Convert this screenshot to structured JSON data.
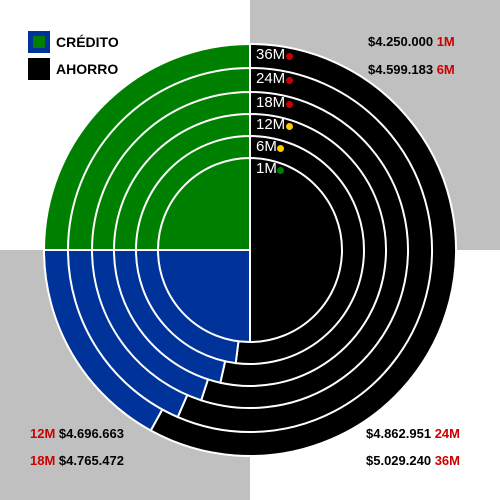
{
  "colors": {
    "credito": "#008000",
    "credito_border": "#003399",
    "ahorro": "#000000",
    "credito_blue": "#003399",
    "bg_gray": "#c0c0c0",
    "term_red": "#cc0000",
    "dot_red": "#cc0000",
    "dot_yellow": "#ffcc00",
    "dot_green": "#008000"
  },
  "legend": {
    "credito_label": "CRÉDITO",
    "ahorro_label": "AHORRO"
  },
  "amounts": {
    "top_right_1": {
      "value": "$4.250.000",
      "term": "1M"
    },
    "top_right_2": {
      "value": "$4.599.183",
      "term": "6M"
    },
    "bottom_left_1": {
      "term": "12M",
      "value": "$4.696.663"
    },
    "bottom_left_2": {
      "term": "18M",
      "value": "$4.765.472"
    },
    "bottom_right_1": {
      "value": "$4.862.951",
      "term": "24M"
    },
    "bottom_right_2": {
      "value": "$5.029.240",
      "term": "36M"
    }
  },
  "chart_data": {
    "type": "pie",
    "categories": [
      "CRÉDITO",
      "AHORRO"
    ],
    "rings": [
      {
        "label": "1M",
        "credito": 0.25,
        "ahorro": 0.5,
        "dot": "green"
      },
      {
        "label": "6M",
        "credito": 0.25,
        "ahorro": 0.52,
        "dot": "yellow"
      },
      {
        "label": "12M",
        "credito": 0.25,
        "ahorro": 0.535,
        "dot": "yellow"
      },
      {
        "label": "18M",
        "credito": 0.25,
        "ahorro": 0.55,
        "dot": "red"
      },
      {
        "label": "24M",
        "credito": 0.25,
        "ahorro": 0.565,
        "dot": "red"
      },
      {
        "label": "36M",
        "credito": 0.25,
        "ahorro": 0.58,
        "dot": "red"
      }
    ]
  }
}
